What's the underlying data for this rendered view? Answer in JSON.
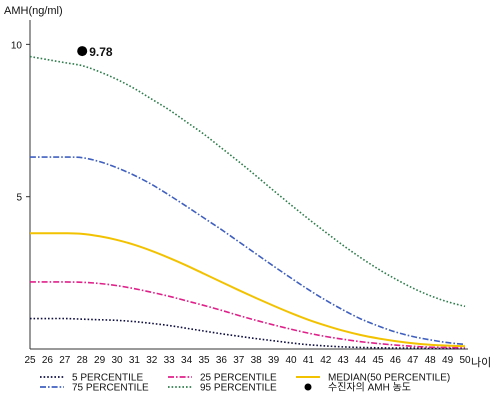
{
  "chart_data": {
    "type": "line",
    "ylabel": "AMH(ng/ml)",
    "xlabel": "나이",
    "x": [
      25,
      26,
      27,
      28,
      29,
      30,
      31,
      32,
      33,
      34,
      35,
      36,
      37,
      38,
      39,
      40,
      41,
      42,
      43,
      44,
      45,
      46,
      47,
      48,
      49,
      50
    ],
    "xlim": [
      25,
      50
    ],
    "ylim": [
      0,
      10.8
    ],
    "yticks": [
      5,
      10
    ],
    "grid": false,
    "legend_position": "bottom",
    "series": [
      {
        "name": "5 PERCENTILE",
        "color": "#0d0d40",
        "dash": "dot",
        "values": [
          1.0,
          1.0,
          1.0,
          0.98,
          0.96,
          0.94,
          0.9,
          0.84,
          0.77,
          0.68,
          0.59,
          0.5,
          0.42,
          0.34,
          0.27,
          0.2,
          0.14,
          0.1,
          0.07,
          0.05,
          0.04,
          0.03,
          0.03,
          0.02,
          0.02,
          0.02
        ]
      },
      {
        "name": "75 PERCENTILE",
        "color": "#4060c0",
        "dash": "dashdot",
        "values": [
          6.3,
          6.3,
          6.3,
          6.28,
          6.15,
          5.95,
          5.7,
          5.4,
          5.05,
          4.68,
          4.3,
          3.92,
          3.52,
          3.12,
          2.72,
          2.33,
          1.95,
          1.6,
          1.28,
          0.99,
          0.76,
          0.56,
          0.41,
          0.3,
          0.21,
          0.15
        ]
      },
      {
        "name": "25 PERCENTILE",
        "color": "#e0208a",
        "dash": "dashdot",
        "values": [
          2.2,
          2.2,
          2.2,
          2.19,
          2.15,
          2.08,
          1.98,
          1.86,
          1.73,
          1.58,
          1.43,
          1.27,
          1.1,
          0.94,
          0.79,
          0.65,
          0.52,
          0.41,
          0.32,
          0.24,
          0.18,
          0.13,
          0.09,
          0.06,
          0.05,
          0.04
        ]
      },
      {
        "name": "95 PERCENTILE",
        "color": "#2e7d4c",
        "dash": "dot",
        "values": [
          9.6,
          9.5,
          9.4,
          9.3,
          9.1,
          8.85,
          8.55,
          8.2,
          7.85,
          7.45,
          7.05,
          6.6,
          6.15,
          5.68,
          5.2,
          4.73,
          4.27,
          3.83,
          3.4,
          3.0,
          2.63,
          2.3,
          2.0,
          1.75,
          1.55,
          1.4
        ]
      },
      {
        "name": "MEDIAN(50 PERCENTILE)",
        "color": "#f2c200",
        "dash": "solid",
        "values": [
          3.8,
          3.8,
          3.8,
          3.78,
          3.7,
          3.58,
          3.42,
          3.22,
          2.99,
          2.74,
          2.47,
          2.2,
          1.93,
          1.67,
          1.42,
          1.18,
          0.96,
          0.77,
          0.6,
          0.46,
          0.35,
          0.26,
          0.19,
          0.14,
          0.11,
          0.09
        ]
      }
    ],
    "points": [
      {
        "name": "수진자의 AMH 농도",
        "x": 28,
        "y": 9.78,
        "label": "9.78",
        "color": "#000000"
      }
    ]
  }
}
